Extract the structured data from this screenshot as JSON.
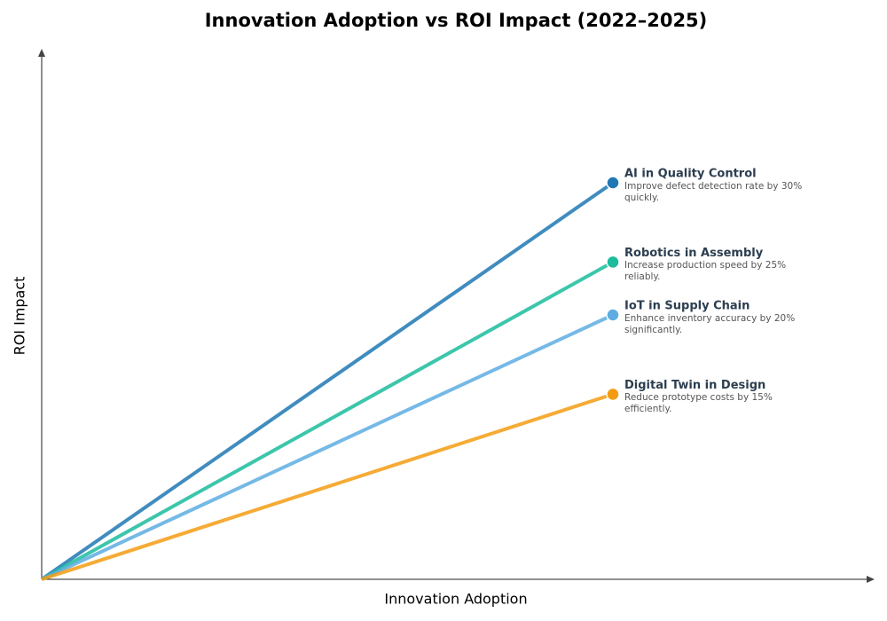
{
  "chart_data": {
    "type": "line",
    "title": "Innovation Adoption vs ROI Impact (2022–2025)",
    "x_label": "Innovation Adoption",
    "y_label": "ROI Impact",
    "xlim": [
      0,
      1
    ],
    "ylim": [
      0,
      1
    ],
    "series": [
      {
        "name": "AI in Quality Control",
        "description": "Improve defect detection rate by 30% quickly.",
        "color": "#1f78b4",
        "x": [
          0,
          0.7
        ],
        "values": [
          0,
          0.75
        ]
      },
      {
        "name": "Robotics in Assembly",
        "description": "Increase production speed by 25% reliably.",
        "color": "#1abc9c",
        "x": [
          0,
          0.7
        ],
        "values": [
          0,
          0.6
        ]
      },
      {
        "name": "IoT in Supply Chain",
        "description": "Enhance inventory accuracy by 20% significantly.",
        "color": "#5dade2",
        "x": [
          0,
          0.7
        ],
        "values": [
          0,
          0.5
        ]
      },
      {
        "name": "Digital Twin in Design",
        "description": "Reduce prototype costs by 15% efficiently.",
        "color": "#f39c12",
        "x": [
          0,
          0.7
        ],
        "values": [
          0,
          0.35
        ]
      }
    ]
  }
}
